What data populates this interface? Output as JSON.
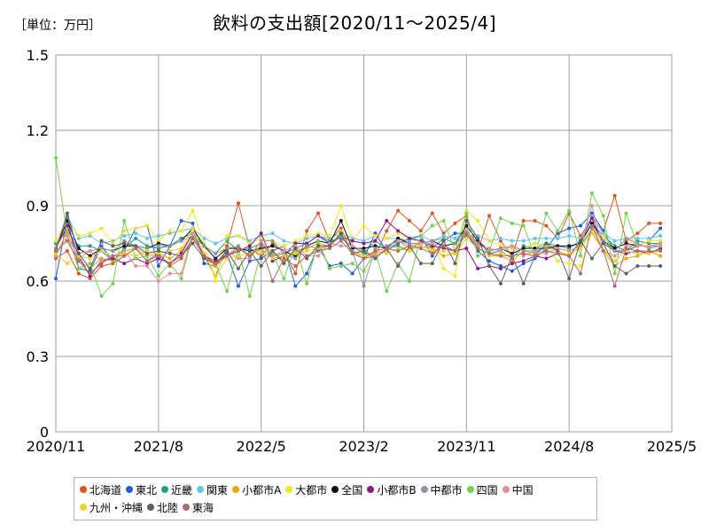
{
  "header": {
    "unit_label": "［単位：万円］",
    "title": "飲料の支出額[2020/11～2025/4]"
  },
  "chart_data": {
    "type": "line",
    "title": "飲料の支出額[2020/11～2025/4]",
    "unit": "［単位：万円］",
    "ylim": [
      0,
      1.5
    ],
    "yticks": [
      0,
      0.3,
      0.6,
      0.9,
      1.2,
      1.5
    ],
    "ytick_labels": [
      "0",
      "0.3",
      "0.6",
      "0.9",
      "1.2",
      "1.5"
    ],
    "xlim": [
      "2020/11",
      "2025/5"
    ],
    "xticks": [
      "2020/11",
      "2021/8",
      "2022/5",
      "2023/2",
      "2023/11",
      "2024/8",
      "2025/5"
    ],
    "grid": true,
    "legend_position": "bottom",
    "x": [
      "2020/11",
      "2020/12",
      "2021/1",
      "2021/2",
      "2021/3",
      "2021/4",
      "2021/5",
      "2021/6",
      "2021/7",
      "2021/8",
      "2021/9",
      "2021/10",
      "2021/11",
      "2021/12",
      "2022/1",
      "2022/2",
      "2022/3",
      "2022/4",
      "2022/5",
      "2022/6",
      "2022/7",
      "2022/8",
      "2022/9",
      "2022/10",
      "2022/11",
      "2022/12",
      "2023/1",
      "2023/2",
      "2023/3",
      "2023/4",
      "2023/5",
      "2023/6",
      "2023/7",
      "2023/8",
      "2023/9",
      "2023/10",
      "2023/11",
      "2023/12",
      "2024/1",
      "2024/2",
      "2024/3",
      "2024/4",
      "2024/5",
      "2024/6",
      "2024/7",
      "2024/8",
      "2024/9",
      "2024/10",
      "2024/11",
      "2024/12",
      "2025/1",
      "2025/2",
      "2025/3",
      "2025/4"
    ],
    "series": [
      {
        "name": "北海道",
        "color": "#e0531c",
        "values": [
          0.69,
          0.72,
          0.63,
          0.61,
          0.66,
          0.67,
          0.7,
          0.73,
          0.68,
          0.71,
          0.66,
          0.69,
          0.77,
          0.7,
          0.62,
          0.74,
          0.91,
          0.73,
          0.7,
          0.75,
          0.72,
          0.63,
          0.8,
          0.87,
          0.76,
          0.81,
          0.71,
          0.69,
          0.7,
          0.8,
          0.88,
          0.84,
          0.8,
          0.87,
          0.79,
          0.83,
          0.86,
          0.72,
          0.86,
          0.76,
          0.7,
          0.84,
          0.84,
          0.82,
          0.77,
          0.87,
          0.78,
          0.85,
          0.8,
          0.94,
          0.76,
          0.79,
          0.83,
          0.83
        ]
      },
      {
        "name": "東北",
        "color": "#1f5fd6",
        "values": [
          0.61,
          0.85,
          0.65,
          0.64,
          0.74,
          0.68,
          0.72,
          0.81,
          0.82,
          0.66,
          0.74,
          0.84,
          0.83,
          0.67,
          0.66,
          0.71,
          0.58,
          0.68,
          0.69,
          0.72,
          0.74,
          0.58,
          0.63,
          0.74,
          0.66,
          0.67,
          0.63,
          0.69,
          0.79,
          0.72,
          0.75,
          0.77,
          0.78,
          0.7,
          0.76,
          0.79,
          0.79,
          0.72,
          0.68,
          0.66,
          0.64,
          0.67,
          0.69,
          0.73,
          0.79,
          0.81,
          0.82,
          0.87,
          0.8,
          0.72,
          0.72,
          0.74,
          0.76,
          0.81
        ]
      },
      {
        "name": "近畿",
        "color": "#1aa37f",
        "values": [
          0.75,
          0.8,
          0.74,
          0.74,
          0.72,
          0.68,
          0.73,
          0.77,
          0.74,
          0.73,
          0.74,
          0.77,
          0.79,
          0.74,
          0.71,
          0.76,
          0.72,
          0.73,
          0.75,
          0.7,
          0.71,
          0.73,
          0.75,
          0.78,
          0.76,
          0.77,
          0.74,
          0.71,
          0.76,
          0.73,
          0.74,
          0.72,
          0.76,
          0.73,
          0.77,
          0.75,
          0.78,
          0.76,
          0.71,
          0.72,
          0.69,
          0.74,
          0.73,
          0.75,
          0.74,
          0.73,
          0.76,
          0.83,
          0.78,
          0.74,
          0.72,
          0.76,
          0.75,
          0.75
        ]
      },
      {
        "name": "関東",
        "color": "#5bc8f2",
        "values": [
          0.73,
          0.86,
          0.77,
          0.78,
          0.75,
          0.76,
          0.78,
          0.79,
          0.77,
          0.78,
          0.79,
          0.8,
          0.81,
          0.77,
          0.75,
          0.77,
          0.78,
          0.76,
          0.78,
          0.79,
          0.76,
          0.75,
          0.77,
          0.78,
          0.77,
          0.79,
          0.77,
          0.76,
          0.78,
          0.77,
          0.77,
          0.76,
          0.78,
          0.76,
          0.78,
          0.77,
          0.8,
          0.78,
          0.76,
          0.77,
          0.76,
          0.76,
          0.77,
          0.77,
          0.77,
          0.78,
          0.77,
          0.86,
          0.79,
          0.76,
          0.77,
          0.77,
          0.77,
          0.78
        ]
      },
      {
        "name": "小都市A",
        "color": "#f0a500",
        "values": [
          0.7,
          0.8,
          0.68,
          0.65,
          0.69,
          0.68,
          0.72,
          0.73,
          0.7,
          0.71,
          0.69,
          0.72,
          0.79,
          0.7,
          0.66,
          0.7,
          0.74,
          0.7,
          0.73,
          0.72,
          0.68,
          0.72,
          0.73,
          0.75,
          0.74,
          0.78,
          0.72,
          0.7,
          0.71,
          0.72,
          0.76,
          0.73,
          0.74,
          0.73,
          0.7,
          0.71,
          0.8,
          0.73,
          0.7,
          0.7,
          0.68,
          0.72,
          0.71,
          0.74,
          0.72,
          0.7,
          0.74,
          0.8,
          0.72,
          0.66,
          0.69,
          0.7,
          0.72,
          0.7
        ]
      },
      {
        "name": "大都市",
        "color": "#f5e51b",
        "values": [
          0.76,
          0.84,
          0.78,
          0.79,
          0.81,
          0.75,
          0.8,
          0.81,
          0.82,
          0.76,
          0.8,
          0.8,
          0.88,
          0.75,
          0.6,
          0.78,
          0.78,
          0.75,
          0.77,
          0.76,
          0.74,
          0.76,
          0.78,
          0.79,
          0.78,
          0.9,
          0.76,
          0.82,
          0.78,
          0.77,
          0.79,
          0.77,
          0.75,
          0.76,
          0.65,
          0.62,
          0.88,
          0.84,
          0.76,
          0.74,
          0.73,
          0.73,
          0.75,
          0.74,
          0.68,
          0.67,
          0.66,
          0.8,
          0.78,
          0.72,
          0.77,
          0.74,
          0.76,
          0.76
        ]
      },
      {
        "name": "全国",
        "color": "#111111",
        "values": [
          0.73,
          0.84,
          0.73,
          0.7,
          0.73,
          0.72,
          0.74,
          0.74,
          0.73,
          0.75,
          0.74,
          0.76,
          0.81,
          0.74,
          0.69,
          0.73,
          0.73,
          0.72,
          0.73,
          0.74,
          0.72,
          0.7,
          0.74,
          0.76,
          0.75,
          0.84,
          0.73,
          0.73,
          0.74,
          0.73,
          0.77,
          0.75,
          0.75,
          0.76,
          0.74,
          0.75,
          0.82,
          0.76,
          0.72,
          0.73,
          0.71,
          0.73,
          0.73,
          0.73,
          0.74,
          0.74,
          0.75,
          0.83,
          0.76,
          0.73,
          0.75,
          0.74,
          0.74,
          0.74
        ]
      },
      {
        "name": "小都市B",
        "color": "#8e168e",
        "values": [
          0.73,
          0.82,
          0.7,
          0.62,
          0.68,
          0.69,
          0.67,
          0.69,
          0.67,
          0.69,
          0.67,
          0.71,
          0.79,
          0.7,
          0.68,
          0.7,
          0.72,
          0.74,
          0.79,
          0.68,
          0.7,
          0.75,
          0.75,
          0.78,
          0.75,
          0.78,
          0.76,
          0.75,
          0.76,
          0.84,
          0.8,
          0.77,
          0.76,
          0.74,
          0.73,
          0.72,
          0.73,
          0.65,
          0.66,
          0.65,
          0.67,
          0.68,
          0.7,
          0.69,
          0.71,
          0.7,
          0.76,
          0.85,
          0.75,
          0.72,
          0.71,
          0.72,
          0.71,
          0.73
        ]
      },
      {
        "name": "中都市",
        "color": "#8a95a5",
        "values": [
          0.73,
          0.86,
          0.71,
          0.72,
          0.73,
          0.72,
          0.76,
          0.74,
          0.73,
          0.74,
          0.74,
          0.76,
          0.78,
          0.74,
          0.71,
          0.73,
          0.74,
          0.7,
          0.76,
          0.76,
          0.71,
          0.69,
          0.74,
          0.73,
          0.74,
          0.78,
          0.72,
          0.58,
          0.73,
          0.74,
          0.76,
          0.75,
          0.75,
          0.76,
          0.77,
          0.75,
          0.8,
          0.75,
          0.72,
          0.73,
          0.74,
          0.72,
          0.72,
          0.73,
          0.73,
          0.72,
          0.74,
          0.81,
          0.76,
          0.72,
          0.77,
          0.75,
          0.73,
          0.74
        ]
      },
      {
        "name": "四国",
        "color": "#6fd64a",
        "values": [
          1.09,
          0.78,
          0.65,
          0.67,
          0.54,
          0.59,
          0.84,
          0.69,
          0.7,
          0.62,
          0.67,
          0.61,
          0.78,
          0.69,
          0.67,
          0.56,
          0.73,
          0.54,
          0.72,
          0.71,
          0.61,
          0.74,
          0.59,
          0.76,
          0.65,
          0.66,
          0.67,
          0.64,
          0.72,
          0.56,
          0.67,
          0.6,
          0.78,
          0.82,
          0.84,
          0.72,
          0.87,
          0.7,
          0.72,
          0.85,
          0.83,
          0.82,
          0.7,
          0.87,
          0.8,
          0.88,
          0.7,
          0.95,
          0.86,
          0.63,
          0.87,
          0.74,
          0.74,
          0.74
        ]
      },
      {
        "name": "中国",
        "color": "#e98aa0",
        "values": [
          0.7,
          0.78,
          0.69,
          0.72,
          0.68,
          0.7,
          0.72,
          0.66,
          0.66,
          0.6,
          0.63,
          0.63,
          0.79,
          0.69,
          0.67,
          0.72,
          0.69,
          0.69,
          0.76,
          0.7,
          0.72,
          0.74,
          0.7,
          0.7,
          0.75,
          0.74,
          0.74,
          0.72,
          0.7,
          0.72,
          0.76,
          0.74,
          0.75,
          0.75,
          0.74,
          0.72,
          0.8,
          0.74,
          0.73,
          0.72,
          0.74,
          0.7,
          0.72,
          0.71,
          0.73,
          0.72,
          0.74,
          0.9,
          0.72,
          0.7,
          0.74,
          0.74,
          0.74,
          0.75
        ]
      },
      {
        "name": "九州・沖縄",
        "color": "#e8d32a",
        "values": [
          0.71,
          0.67,
          0.7,
          0.69,
          0.72,
          0.7,
          0.71,
          0.7,
          0.72,
          0.71,
          0.72,
          0.73,
          0.81,
          0.71,
          0.62,
          0.69,
          0.7,
          0.71,
          0.72,
          0.69,
          0.7,
          0.71,
          0.72,
          0.73,
          0.73,
          0.8,
          0.71,
          0.7,
          0.72,
          0.71,
          0.73,
          0.72,
          0.74,
          0.72,
          0.72,
          0.71,
          0.77,
          0.73,
          0.7,
          0.71,
          0.7,
          0.71,
          0.7,
          0.72,
          0.71,
          0.71,
          0.73,
          0.79,
          0.72,
          0.68,
          0.72,
          0.71,
          0.71,
          0.72
        ]
      },
      {
        "name": "北陸",
        "color": "#606060",
        "values": [
          0.72,
          0.87,
          0.71,
          0.65,
          0.76,
          0.74,
          0.75,
          0.74,
          0.71,
          0.72,
          0.71,
          0.7,
          0.75,
          0.69,
          0.67,
          0.72,
          0.65,
          0.72,
          0.66,
          0.72,
          0.67,
          0.73,
          0.69,
          0.74,
          0.74,
          0.79,
          0.71,
          0.72,
          0.69,
          0.73,
          0.66,
          0.74,
          0.67,
          0.67,
          0.76,
          0.67,
          0.84,
          0.77,
          0.66,
          0.59,
          0.7,
          0.59,
          0.7,
          0.75,
          0.72,
          0.61,
          0.76,
          0.69,
          0.75,
          0.66,
          0.63,
          0.66,
          0.66,
          0.66
        ]
      },
      {
        "name": "東海",
        "color": "#b06a6a",
        "values": [
          0.72,
          0.76,
          0.68,
          0.63,
          0.67,
          0.7,
          0.7,
          0.73,
          0.68,
          0.7,
          0.67,
          0.7,
          0.77,
          0.7,
          0.67,
          0.7,
          0.73,
          0.7,
          0.74,
          0.6,
          0.69,
          0.66,
          0.7,
          0.72,
          0.73,
          0.76,
          0.71,
          0.69,
          0.72,
          0.73,
          0.72,
          0.74,
          0.73,
          0.71,
          0.74,
          0.72,
          0.79,
          0.73,
          0.71,
          0.7,
          0.7,
          0.71,
          0.7,
          0.72,
          0.71,
          0.7,
          0.63,
          0.82,
          0.72,
          0.58,
          0.73,
          0.72,
          0.72,
          0.72
        ]
      }
    ]
  }
}
